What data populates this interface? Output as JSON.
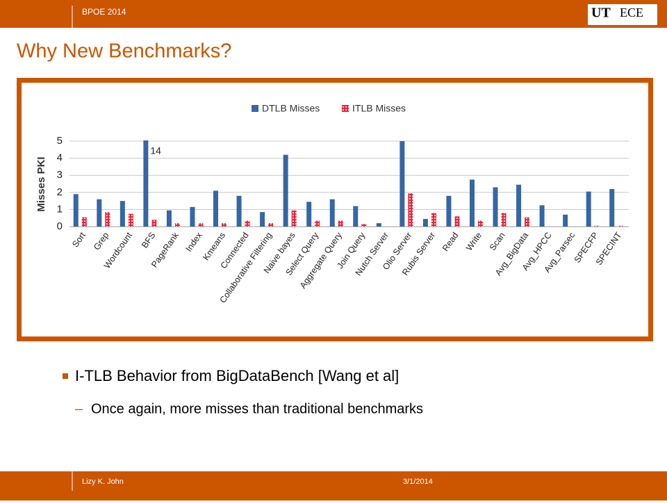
{
  "header": {
    "event": "BPOE 2014",
    "logo_left": "UT",
    "logo_right": "ECE"
  },
  "title": "Why New Benchmarks?",
  "bullets": [
    "I-TLB Behavior from BigDataBench [Wang et al]"
  ],
  "sub_bullets": [
    "Once again, more misses than traditional benchmarks"
  ],
  "footer": {
    "author": "Lizy K. John",
    "date": "3/1/2014"
  },
  "chart_data": {
    "type": "bar",
    "y_label": "Misses PKI",
    "categories": [
      "Sort",
      "Grep",
      "Wordcount",
      "BFS",
      "PageRank",
      "Index",
      "Kmeans",
      "Connected",
      "Collaborative Filtering",
      "Naive bayes",
      "Select Query",
      "Aggregate Query",
      "Join Query",
      "Nutch Server",
      "Olio Server",
      "Rubis Server",
      "Read",
      "Write",
      "Scan",
      "Avg_BigData",
      "Avg_HPCC",
      "Avg_Parsec",
      "SPECFP",
      "SPECINT"
    ],
    "series": [
      {
        "name": "DTLB Misses",
        "color": "#3566a6",
        "pattern": "solid",
        "values": [
          1.9,
          1.6,
          1.5,
          14,
          0.95,
          1.15,
          2.1,
          1.8,
          0.85,
          4.2,
          1.45,
          1.6,
          1.2,
          0.2,
          5,
          0.45,
          1.8,
          2.75,
          2.3,
          2.45,
          1.25,
          0.7,
          2.05,
          2.2
        ],
        "value_labels": [
          null,
          null,
          null,
          "14",
          null,
          null,
          null,
          null,
          null,
          null,
          null,
          null,
          null,
          null,
          null,
          null,
          null,
          null,
          null,
          null,
          null,
          null,
          null,
          null
        ]
      },
      {
        "name": "ITLB Misses",
        "color": "#e8283c",
        "pattern": "dotted",
        "values": [
          0.55,
          0.85,
          0.75,
          0.4,
          0.2,
          0.2,
          0.2,
          0.35,
          0.2,
          0.95,
          0.35,
          0.35,
          0.15,
          0,
          1.95,
          0.8,
          0.6,
          0.35,
          0.8,
          0.55,
          null,
          null,
          0.05,
          0.05
        ]
      }
    ],
    "ylim": [
      0,
      5
    ],
    "yticks": [
      0,
      1,
      2,
      3,
      4,
      5
    ],
    "grid": true,
    "legend": "top"
  }
}
